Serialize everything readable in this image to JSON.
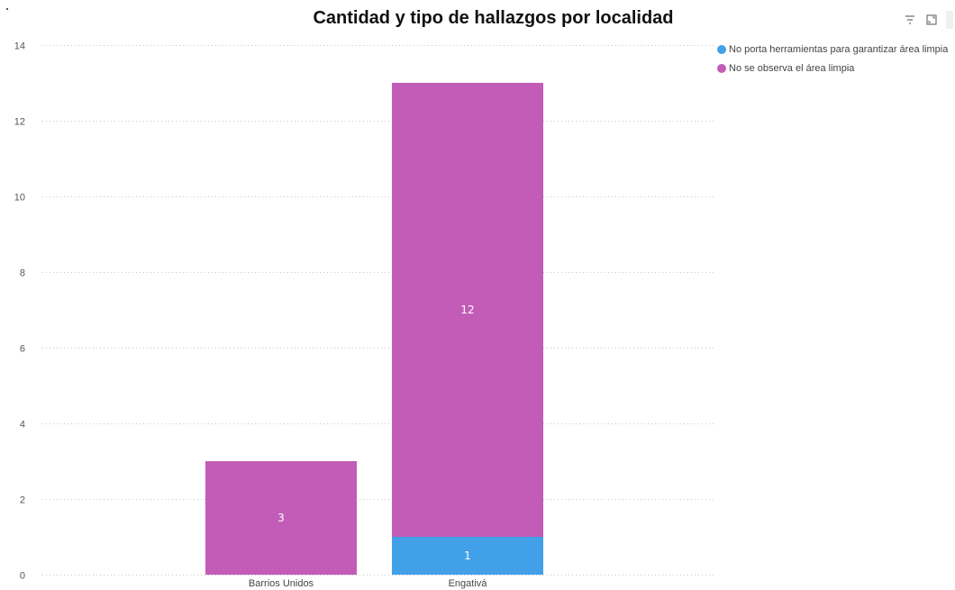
{
  "chart_data": {
    "type": "bar",
    "stacked": true,
    "title": "Cantidad y tipo de hallazgos por localidad",
    "xlabel": "",
    "ylabel": "",
    "categories": [
      "Barrios Unidos",
      "Engativá"
    ],
    "ylim": [
      0,
      14
    ],
    "yticks": [
      0,
      2,
      4,
      6,
      8,
      10,
      12,
      14
    ],
    "grid": true,
    "legend_position": "top-right",
    "series": [
      {
        "name": "No porta herramientas para garantizar área limpia",
        "color": "#42a0e8",
        "values": [
          0,
          1
        ],
        "labels": [
          "",
          "1"
        ]
      },
      {
        "name": "No se observa el área limpia",
        "color": "#c25cb6",
        "values": [
          3,
          12
        ],
        "labels": [
          "3",
          "12"
        ]
      }
    ]
  },
  "toolbar": {
    "filter_icon": "filter-icon",
    "expand_icon": "expand-icon"
  }
}
